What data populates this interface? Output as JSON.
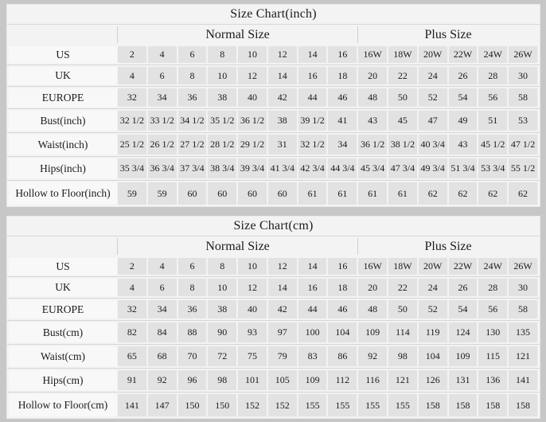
{
  "page": {
    "background": "#c7c7c7",
    "table_background": "#f3f3f3",
    "cell_background": "#e2e2e2",
    "label_background": "#f8f8f8",
    "grid_line_color": "#d6d6d6",
    "text_color": "#1b1b1b"
  },
  "chart_data": [
    {
      "type": "table",
      "title": "Size Chart(inch)",
      "column_groups": [
        {
          "label": "Normal Size",
          "span": 8
        },
        {
          "label": "Plus Size",
          "span": 6
        }
      ],
      "columns": [
        "2",
        "4",
        "6",
        "8",
        "10",
        "12",
        "14",
        "16",
        "16W",
        "18W",
        "20W",
        "22W",
        "24W",
        "26W"
      ],
      "rows": [
        {
          "label": "US",
          "values": [
            "2",
            "4",
            "6",
            "8",
            "10",
            "12",
            "14",
            "16",
            "16W",
            "18W",
            "20W",
            "22W",
            "24W",
            "26W"
          ]
        },
        {
          "label": "UK",
          "values": [
            "4",
            "6",
            "8",
            "10",
            "12",
            "14",
            "16",
            "18",
            "20",
            "22",
            "24",
            "26",
            "28",
            "30"
          ]
        },
        {
          "label": "EUROPE",
          "values": [
            "32",
            "34",
            "36",
            "38",
            "40",
            "42",
            "44",
            "46",
            "48",
            "50",
            "52",
            "54",
            "56",
            "58"
          ]
        },
        {
          "label": "Bust(inch)",
          "values": [
            "32 1/2",
            "33 1/2",
            "34 1/2",
            "35 1/2",
            "36 1/2",
            "38",
            "39 1/2",
            "41",
            "43",
            "45",
            "47",
            "49",
            "51",
            "53"
          ]
        },
        {
          "label": "Waist(inch)",
          "values": [
            "25 1/2",
            "26 1/2",
            "27 1/2",
            "28 1/2",
            "29 1/2",
            "31",
            "32 1/2",
            "34",
            "36 1/2",
            "38 1/2",
            "40 3/4",
            "43",
            "45 1/2",
            "47 1/2"
          ]
        },
        {
          "label": "Hips(inch)",
          "values": [
            "35 3/4",
            "36 3/4",
            "37 3/4",
            "38 3/4",
            "39 3/4",
            "41 3/4",
            "42 3/4",
            "44 3/4",
            "45 3/4",
            "47 3/4",
            "49 3/4",
            "51 3/4",
            "53 3/4",
            "55 1/2"
          ]
        },
        {
          "label": "Hollow to Floor(inch)",
          "values": [
            "59",
            "59",
            "60",
            "60",
            "60",
            "60",
            "61",
            "61",
            "61",
            "61",
            "62",
            "62",
            "62",
            "62"
          ]
        }
      ]
    },
    {
      "type": "table",
      "title": "Size Chart(cm)",
      "column_groups": [
        {
          "label": "Normal Size",
          "span": 8
        },
        {
          "label": "Plus Size",
          "span": 6
        }
      ],
      "columns": [
        "2",
        "4",
        "6",
        "8",
        "10",
        "12",
        "14",
        "16",
        "16W",
        "18W",
        "20W",
        "22W",
        "24W",
        "26W"
      ],
      "rows": [
        {
          "label": "US",
          "values": [
            "2",
            "4",
            "6",
            "8",
            "10",
            "12",
            "14",
            "16",
            "16W",
            "18W",
            "20W",
            "22W",
            "24W",
            "26W"
          ]
        },
        {
          "label": "UK",
          "values": [
            "4",
            "6",
            "8",
            "10",
            "12",
            "14",
            "16",
            "18",
            "20",
            "22",
            "24",
            "26",
            "28",
            "30"
          ]
        },
        {
          "label": "EUROPE",
          "values": [
            "32",
            "34",
            "36",
            "38",
            "40",
            "42",
            "44",
            "46",
            "48",
            "50",
            "52",
            "54",
            "56",
            "58"
          ]
        },
        {
          "label": "Bust(cm)",
          "values": [
            "82",
            "84",
            "88",
            "90",
            "93",
            "97",
            "100",
            "104",
            "109",
            "114",
            "119",
            "124",
            "130",
            "135"
          ]
        },
        {
          "label": "Waist(cm)",
          "values": [
            "65",
            "68",
            "70",
            "72",
            "75",
            "79",
            "83",
            "86",
            "92",
            "98",
            "104",
            "109",
            "115",
            "121"
          ]
        },
        {
          "label": "Hips(cm)",
          "values": [
            "91",
            "92",
            "96",
            "98",
            "101",
            "105",
            "109",
            "112",
            "116",
            "121",
            "126",
            "131",
            "136",
            "141"
          ]
        },
        {
          "label": "Hollow to Floor(cm)",
          "values": [
            "141",
            "147",
            "150",
            "150",
            "152",
            "152",
            "155",
            "155",
            "155",
            "155",
            "158",
            "158",
            "158",
            "158"
          ]
        }
      ]
    }
  ]
}
